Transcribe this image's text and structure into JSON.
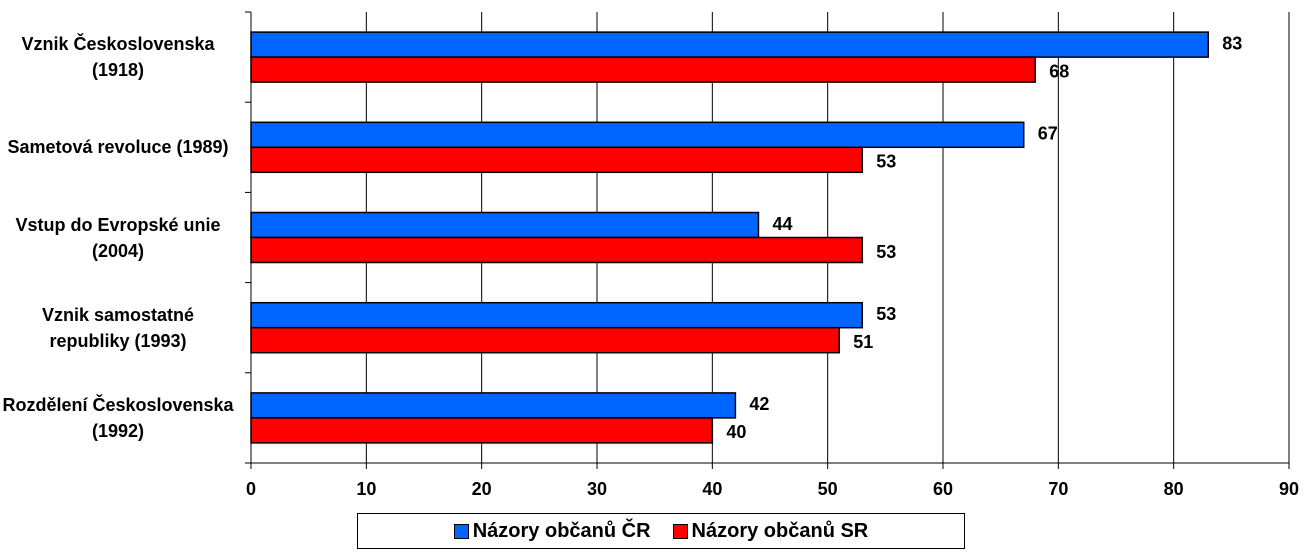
{
  "chart_data": {
    "type": "bar",
    "orientation": "horizontal",
    "categories": [
      "Vznik Československa (1918)",
      "Sametová revoluce (1989)",
      "Vstup do Evropské unie (2004)",
      "Vznik samostatné republiky (1993)",
      "Rozdělení Československa (1992)"
    ],
    "series": [
      {
        "name": "Názory občanů ČR",
        "color": "#0066ff",
        "values": [
          83,
          67,
          44,
          53,
          42
        ]
      },
      {
        "name": "Názory občanů SR",
        "color": "#ff0000",
        "values": [
          68,
          53,
          53,
          51,
          40
        ]
      }
    ],
    "xlim": [
      0,
      90
    ],
    "xticks": [
      0,
      10,
      20,
      30,
      40,
      50,
      60,
      70,
      80,
      90
    ],
    "grid": true,
    "legend": "bottom"
  }
}
